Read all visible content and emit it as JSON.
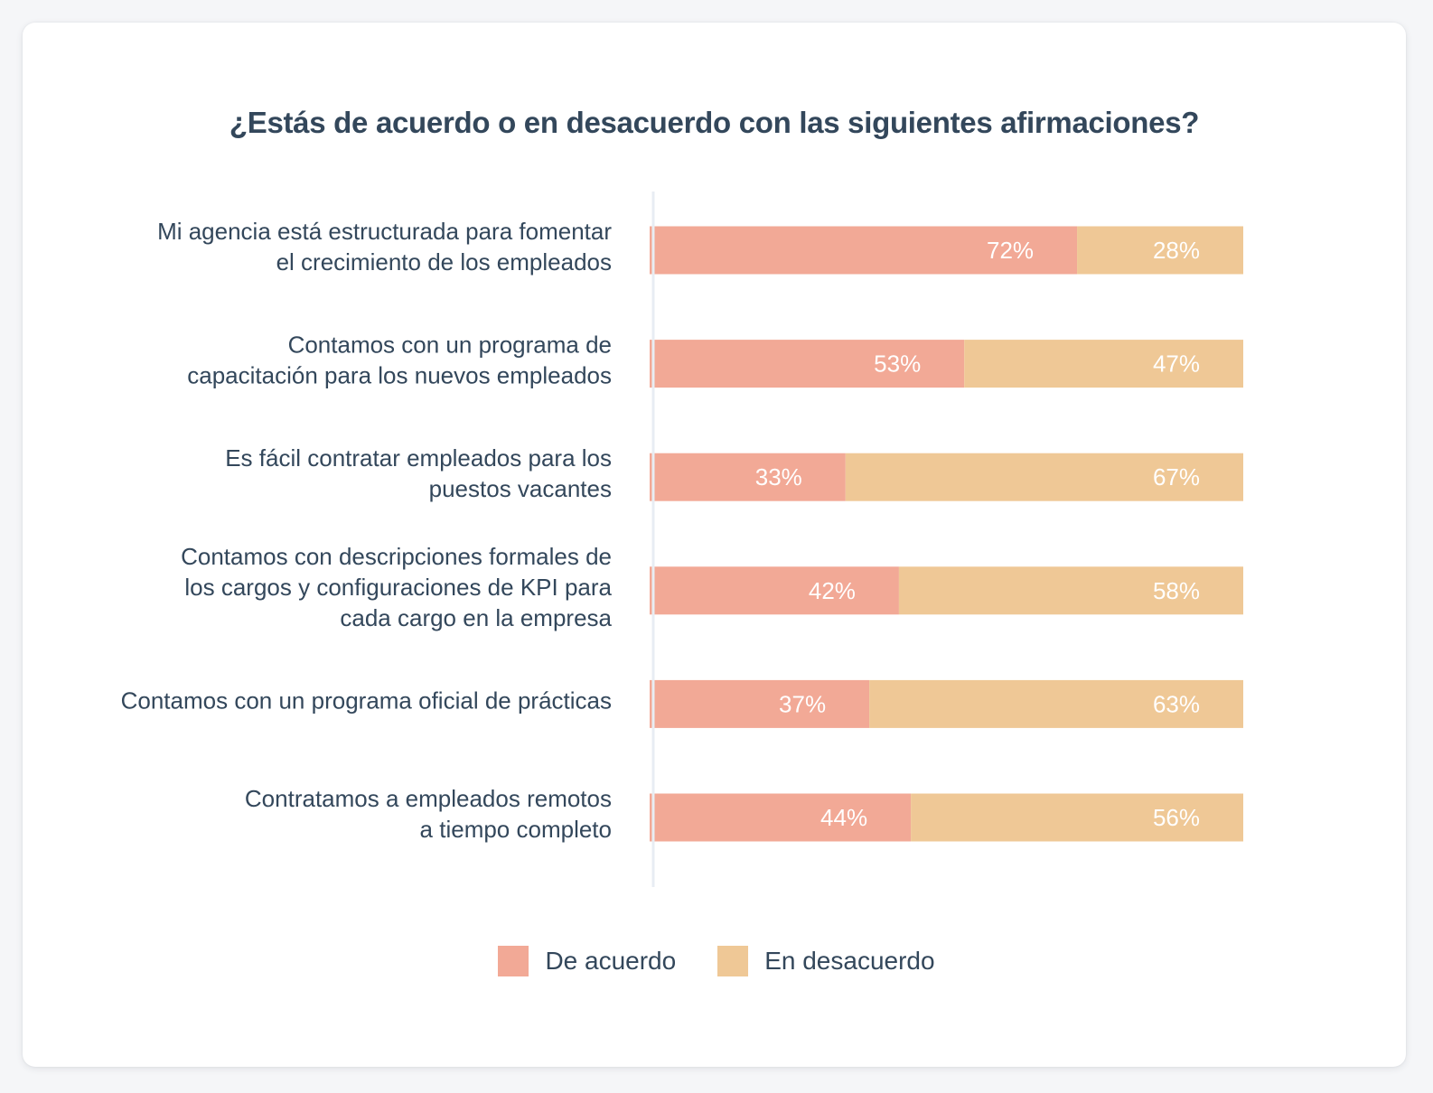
{
  "chart_data": {
    "type": "bar",
    "orientation": "horizontal",
    "stacked": true,
    "title": "¿Estás de acuerdo o en desacuerdo con las siguientes afirmaciones?",
    "xlabel": "",
    "ylabel": "",
    "xlim": [
      0,
      100
    ],
    "unit": "%",
    "grid": false,
    "legend_position": "bottom",
    "categories": [
      [
        "Mi agencia está estructurada para fomentar",
        "el crecimiento de los empleados"
      ],
      [
        "Contamos con un programa de",
        "capacitación para los nuevos empleados"
      ],
      [
        "Es fácil contratar empleados para los",
        "puestos vacantes"
      ],
      [
        "Contamos con descripciones formales de",
        "los cargos y configuraciones de KPI para",
        "cada cargo en la empresa"
      ],
      [
        "Contamos con un programa oficial de prácticas"
      ],
      [
        "Contratamos a empleados remotos",
        "a tiempo completo"
      ]
    ],
    "series": [
      {
        "name": "De acuerdo",
        "color": "#f2a996",
        "values": [
          72,
          53,
          33,
          42,
          37,
          44
        ]
      },
      {
        "name": "En desacuerdo",
        "color": "#efc896",
        "values": [
          28,
          47,
          67,
          58,
          63,
          56
        ]
      }
    ]
  },
  "legend": [
    {
      "label": "De acuerdo",
      "color": "#f2a996"
    },
    {
      "label": "En desacuerdo",
      "color": "#efc896"
    }
  ],
  "colors": {
    "text": "#33475b",
    "axis": "#e8edf3",
    "value_label": "#ffffff"
  }
}
